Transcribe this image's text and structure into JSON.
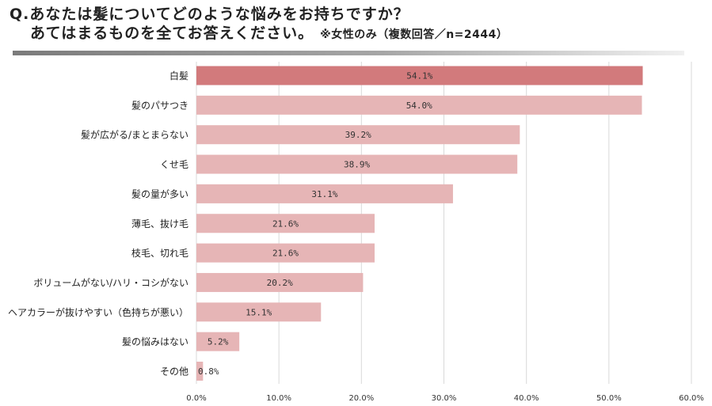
{
  "header": {
    "title_line1": "Q.あなたは髪についてどのような悩みをお持ちですか？",
    "title_line2": "あてはまるものを全てお答えください。",
    "note": "※女性のみ（複数回答／n=2444）"
  },
  "colors": {
    "highlight_bar": "#d27a7c",
    "bar": "#e6b5b6",
    "grid": "#d9d9d9"
  },
  "chart_data": {
    "type": "bar",
    "orientation": "horizontal",
    "title": "Q.あなたは髪についてどのような悩みをお持ちですか？ あてはまるものを全てお答えください。",
    "categories": [
      "白髪",
      "髪のパサつき",
      "髪が広がる/まとまらない",
      "くせ毛",
      "髪の量が多い",
      "薄毛、抜け毛",
      "枝毛、切れ毛",
      "ボリュームがない/ハリ・コシがない",
      "ヘアカラーが抜けやすい（色持ちが悪い）",
      "髪の悩みはない",
      "その他"
    ],
    "values": [
      54.1,
      54.0,
      39.2,
      38.9,
      31.1,
      21.6,
      21.6,
      20.2,
      15.1,
      5.2,
      0.8
    ],
    "value_labels": [
      "54.1%",
      "54.0%",
      "39.2%",
      "38.9%",
      "31.1%",
      "21.6%",
      "21.6%",
      "20.2%",
      "15.1%",
      "5.2%",
      "0.8%"
    ],
    "xlim": [
      0,
      60
    ],
    "xticks": [
      0,
      10,
      20,
      30,
      40,
      50,
      60
    ],
    "xtick_labels": [
      "0.0%",
      "10.0%",
      "20.0%",
      "30.0%",
      "40.0%",
      "50.0%",
      "60.0%"
    ],
    "highlight_index": 0,
    "grid": true
  }
}
